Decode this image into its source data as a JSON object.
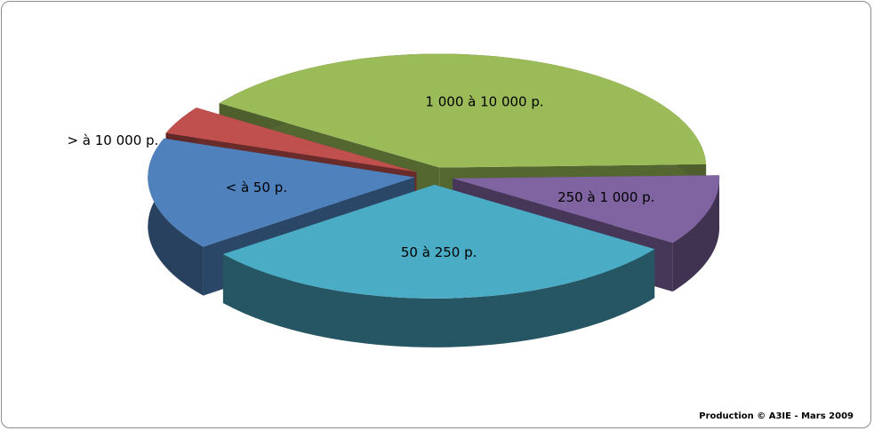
{
  "chart_data": {
    "type": "pie3d",
    "categories": [
      "< à 50 p.",
      "50 à 250 p.",
      "250 à 1 000 p.",
      "1 000 à 10 000 p.",
      "> à 10 000 p."
    ],
    "values": [
      16,
      30,
      10,
      40,
      4
    ],
    "colors": [
      "#4f81bd",
      "#4bacc6",
      "#8064a2",
      "#9bbb59",
      "#c0504d"
    ],
    "source": "Production © A3IE - Mars 2009"
  }
}
